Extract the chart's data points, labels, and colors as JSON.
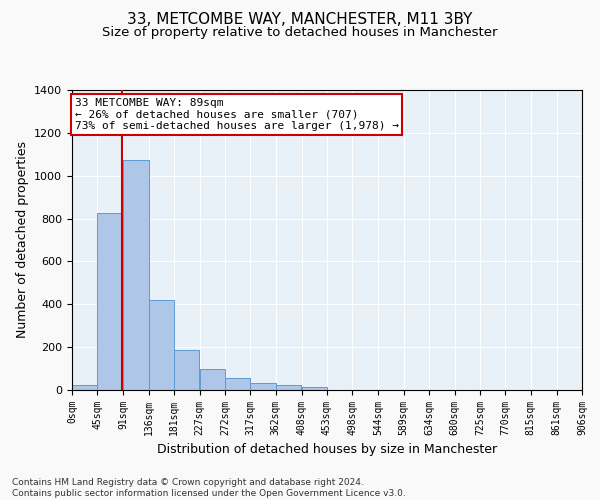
{
  "title_line1": "33, METCOMBE WAY, MANCHESTER, M11 3BY",
  "title_line2": "Size of property relative to detached houses in Manchester",
  "xlabel": "Distribution of detached houses by size in Manchester",
  "ylabel": "Number of detached properties",
  "bar_values": [
    25,
    825,
    1075,
    420,
    185,
    100,
    55,
    35,
    25,
    15,
    0,
    0,
    0,
    0,
    0,
    0,
    0,
    0,
    0,
    0
  ],
  "bar_color": "#aec6e8",
  "bar_edge_color": "#5b9bd5",
  "background_color": "#e8f0f8",
  "grid_color": "#ffffff",
  "annotation_text": "33 METCOMBE WAY: 89sqm\n← 26% of detached houses are smaller (707)\n73% of semi-detached houses are larger (1,978) →",
  "annotation_box_color": "#ffffff",
  "annotation_box_edge": "#cc0000",
  "property_line_x": 89,
  "ylim": [
    0,
    1400
  ],
  "yticks": [
    0,
    200,
    400,
    600,
    800,
    1000,
    1200,
    1400
  ],
  "bin_starts": [
    0,
    45,
    91,
    136,
    181,
    227,
    272,
    317,
    362,
    408,
    453,
    498,
    544,
    589,
    634,
    680,
    725,
    770,
    815,
    861
  ],
  "bin_width": 45,
  "xtick_positions": [
    0,
    45,
    91,
    136,
    181,
    227,
    272,
    317,
    362,
    408,
    453,
    498,
    544,
    589,
    634,
    680,
    725,
    770,
    815,
    861,
    906
  ],
  "xtick_labels": [
    "0sqm",
    "45sqm",
    "91sqm",
    "136sqm",
    "181sqm",
    "227sqm",
    "272sqm",
    "317sqm",
    "362sqm",
    "408sqm",
    "453sqm",
    "498sqm",
    "544sqm",
    "589sqm",
    "634sqm",
    "680sqm",
    "725sqm",
    "770sqm",
    "815sqm",
    "861sqm",
    "906sqm"
  ],
  "footnote": "Contains HM Land Registry data © Crown copyright and database right 2024.\nContains public sector information licensed under the Open Government Licence v3.0.",
  "title_fontsize": 11,
  "subtitle_fontsize": 9.5,
  "ylabel_fontsize": 9,
  "xlabel_fontsize": 9,
  "footnote_fontsize": 6.5,
  "tick_fontsize": 7,
  "annotation_fontsize": 8
}
